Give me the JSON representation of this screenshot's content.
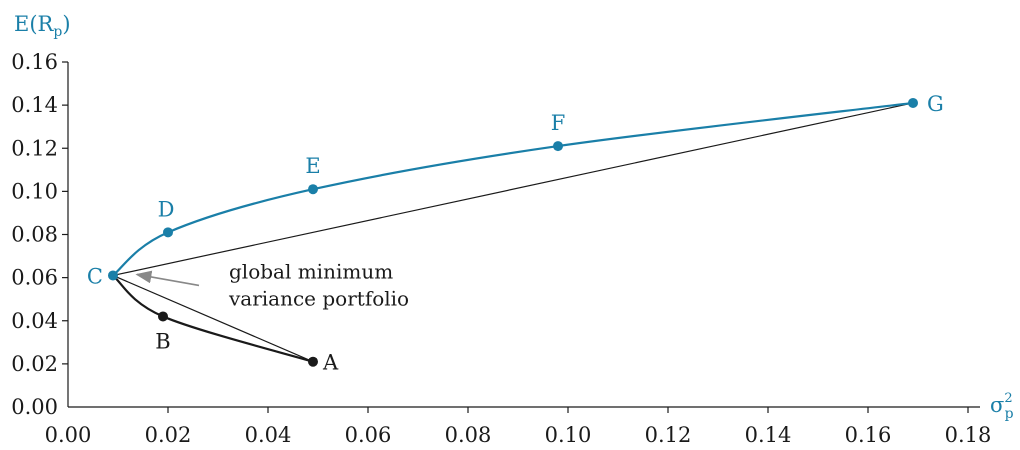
{
  "chart_data": {
    "type": "scatter",
    "title": "",
    "xlabel": "σ",
    "xlabel_sub": "p",
    "xlabel_sup": "2",
    "ylabel": "E(R",
    "ylabel_sub": "p",
    "ylabel_close": ")",
    "xlim": [
      0,
      0.18
    ],
    "ylim": [
      0,
      0.16
    ],
    "x_ticks": [
      "0.00",
      "0.02",
      "0.04",
      "0.06",
      "0.08",
      "0.10",
      "0.12",
      "0.14",
      "0.16",
      "0.18"
    ],
    "y_ticks": [
      "0.00",
      "0.02",
      "0.04",
      "0.06",
      "0.08",
      "0.10",
      "0.12",
      "0.14",
      "0.16"
    ],
    "grid": false,
    "colors": {
      "efficient": "#1a7fa8",
      "inefficient": "#1a1a1a",
      "arrow": "#888888"
    },
    "points": [
      {
        "label": "A",
        "x": 0.049,
        "y": 0.021,
        "series": "inefficient"
      },
      {
        "label": "B",
        "x": 0.019,
        "y": 0.042,
        "series": "inefficient"
      },
      {
        "label": "C",
        "x": 0.009,
        "y": 0.061,
        "series": "efficient"
      },
      {
        "label": "D",
        "x": 0.02,
        "y": 0.081,
        "series": "efficient"
      },
      {
        "label": "E",
        "x": 0.049,
        "y": 0.101,
        "series": "efficient"
      },
      {
        "label": "F",
        "x": 0.098,
        "y": 0.121,
        "series": "efficient"
      },
      {
        "label": "G",
        "x": 0.169,
        "y": 0.141,
        "series": "efficient"
      }
    ],
    "chords": [
      [
        "C",
        "A"
      ],
      [
        "C",
        "G"
      ]
    ],
    "annotation": {
      "line1": "global minimum",
      "line2": "variance portfolio",
      "target": "C"
    }
  }
}
